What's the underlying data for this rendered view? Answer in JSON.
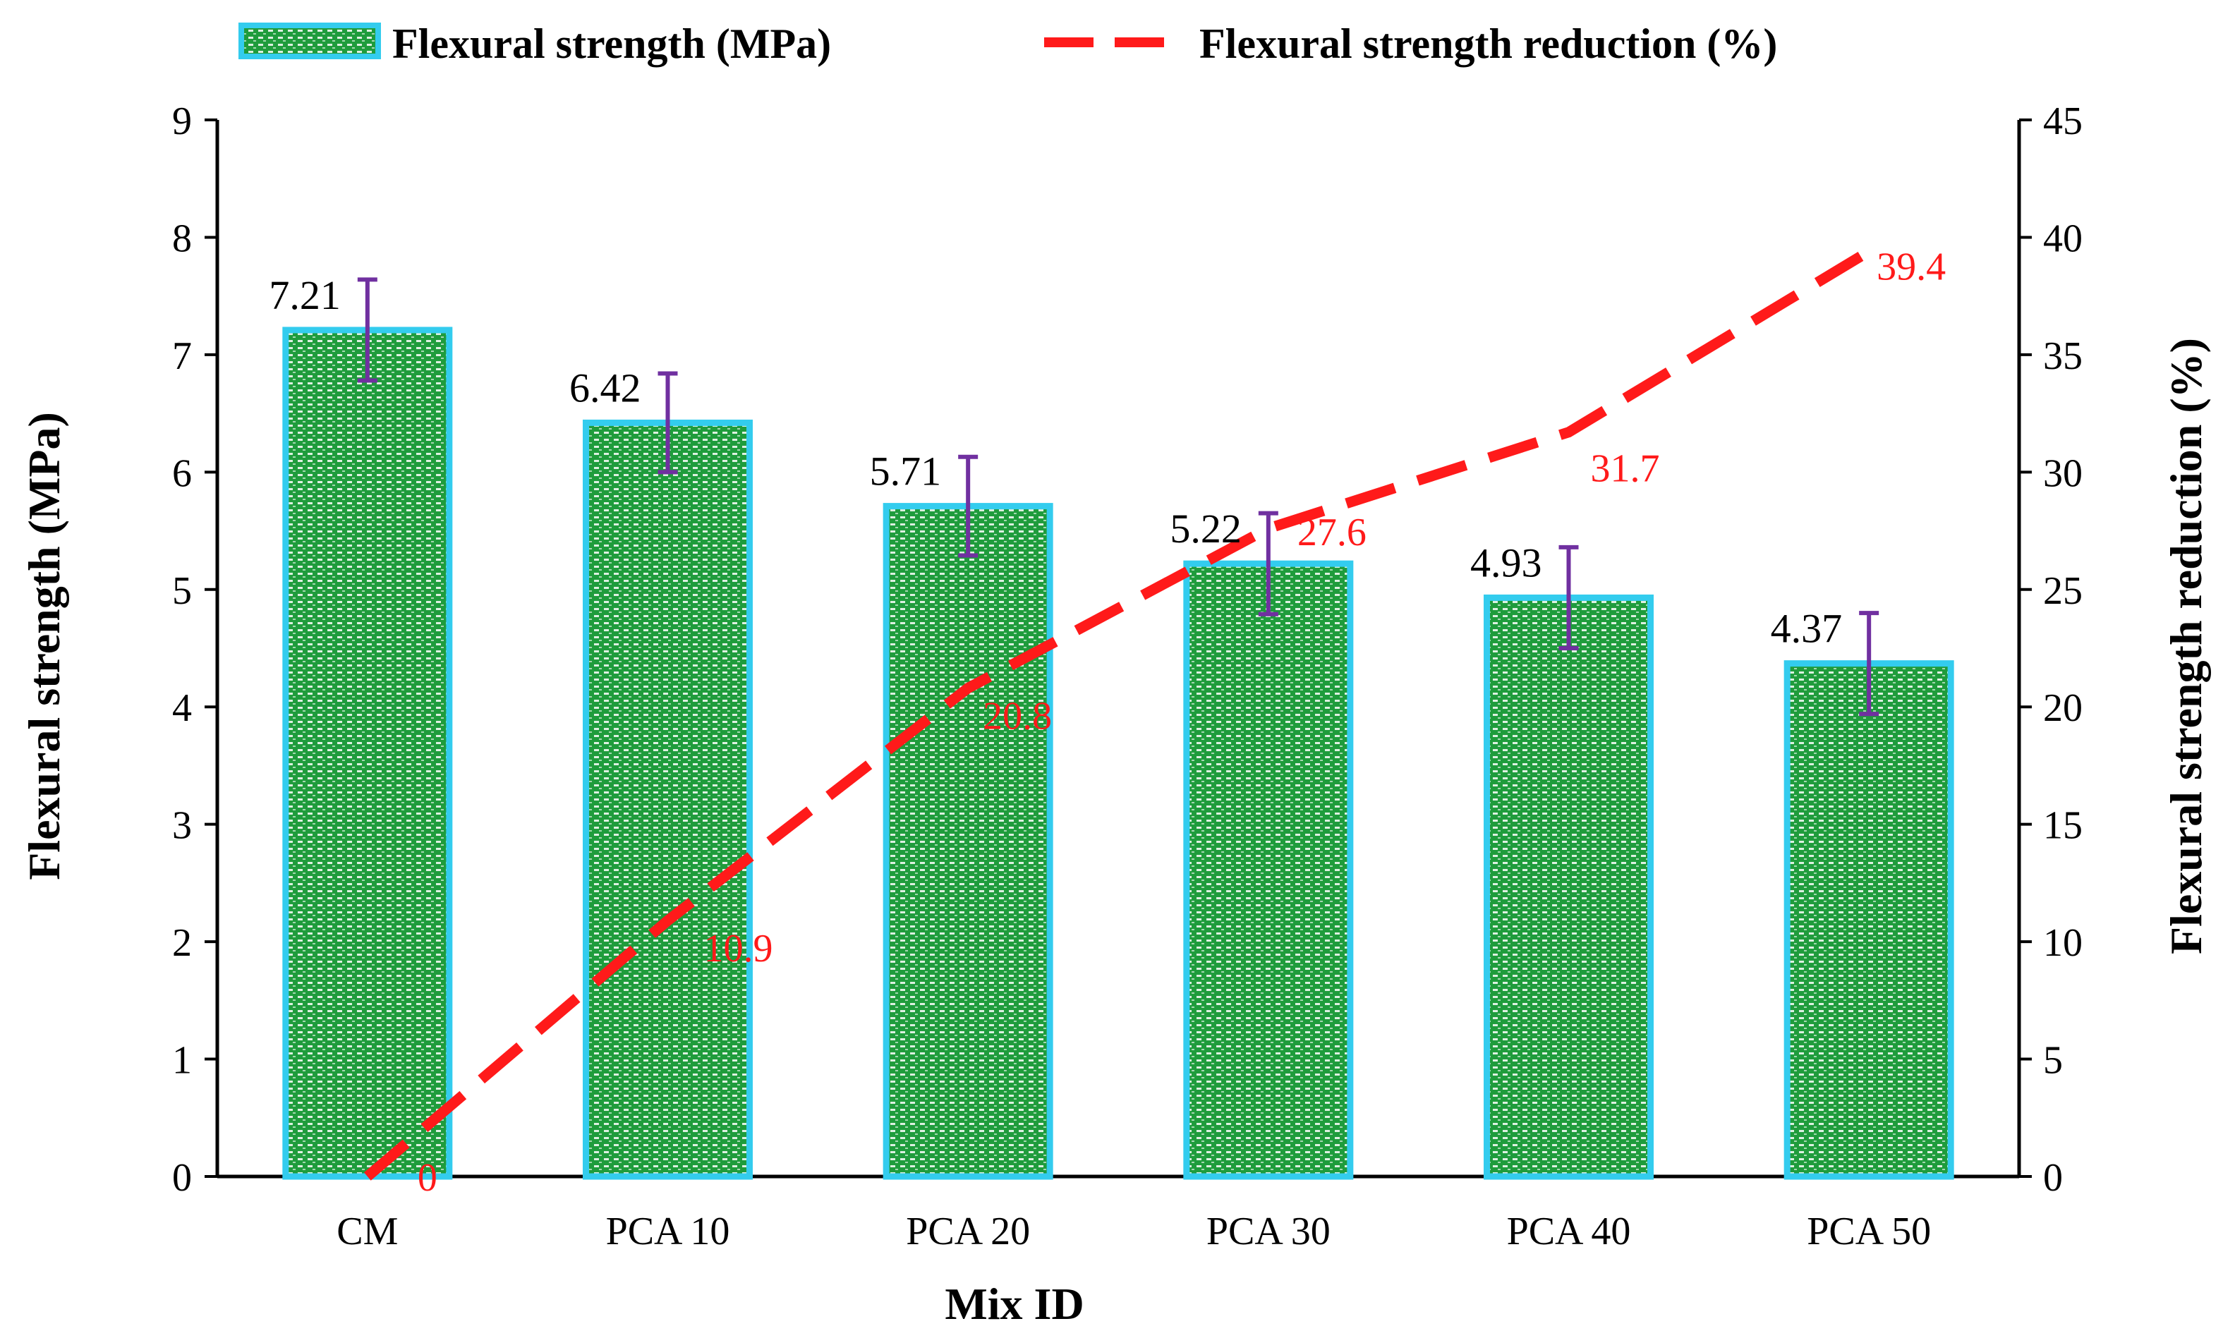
{
  "chart_data": {
    "type": "bar",
    "title": "",
    "xlabel": "Mix ID",
    "ylabel": "Flexural strength (MPa)",
    "y2label": "Flexural strength reduction (%)",
    "categories": [
      "CM",
      "PCA 10",
      "PCA 20",
      "PCA 30",
      "PCA 40",
      "PCA 50"
    ],
    "ylim": [
      0,
      9
    ],
    "y2lim": [
      0,
      45
    ],
    "yticks": [
      "0",
      "1",
      "2",
      "3",
      "4",
      "5",
      "6",
      "7",
      "8",
      "9"
    ],
    "y2ticks": [
      "0",
      "5",
      "10",
      "15",
      "20",
      "25",
      "30",
      "35",
      "40",
      "45"
    ],
    "legend_position": "top",
    "series": [
      {
        "name": "Flexural strength (MPa)",
        "type": "bar",
        "axis": "left",
        "values": [
          7.21,
          6.42,
          5.71,
          5.22,
          4.93,
          4.37
        ],
        "labels": [
          "7.21",
          "6.42",
          "5.71",
          "5.22",
          "4.93",
          "4.37"
        ],
        "error": [
          0.43,
          0.42,
          0.42,
          0.43,
          0.43,
          0.43
        ],
        "fill_color": "#1f9c3c",
        "edge_color": "#33ccee",
        "error_color": "#7030a0"
      },
      {
        "name": "Flexural strength reduction (%)",
        "type": "line",
        "axis": "right",
        "values": [
          0,
          10.9,
          20.8,
          27.6,
          31.7,
          39.4
        ],
        "labels": [
          "0",
          "10.9",
          "20.8",
          "27.6",
          "31.7",
          "39.4"
        ],
        "color": "#ff1a1a",
        "style": "dashed"
      }
    ]
  }
}
